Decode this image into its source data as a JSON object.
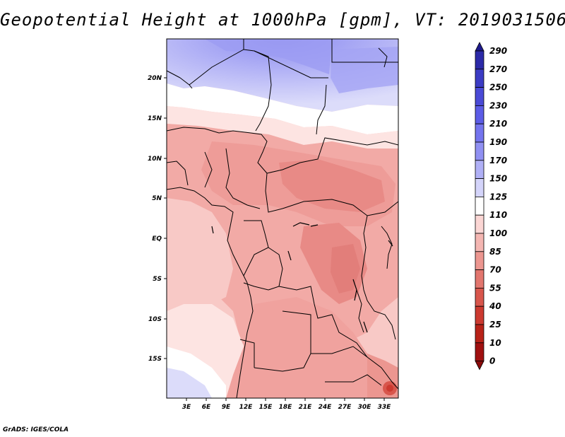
{
  "title": "Geopotential Height at 1000hPa [gpm], VT: 2019031506",
  "footer": "GrADS: IGES/COLA",
  "map": {
    "lat_labels": [
      "20N",
      "15N",
      "10N",
      "5N",
      "EQ",
      "5S",
      "10S",
      "15S"
    ],
    "lon_labels": [
      "3E",
      "6E",
      "9E",
      "12E",
      "15E",
      "18E",
      "21E",
      "24E",
      "27E",
      "30E",
      "33E"
    ]
  },
  "colorbar": {
    "levels": [
      "290",
      "270",
      "250",
      "230",
      "210",
      "190",
      "170",
      "150",
      "125",
      "110",
      "100",
      "85",
      "70",
      "55",
      "40",
      "25",
      "10",
      "0"
    ],
    "colors": [
      "#1e1a8c",
      "#2c2aa8",
      "#3c3cc4",
      "#4a4ad6",
      "#5c5ce6",
      "#7474ee",
      "#9090f2",
      "#b0b0f6",
      "#d4d4fa",
      "#ffffff",
      "#fbd6d4",
      "#f4b6b2",
      "#ec9690",
      "#e2766e",
      "#d8564c",
      "#cc3a30",
      "#b82218",
      "#a01010",
      "#8a0a0a"
    ]
  }
}
